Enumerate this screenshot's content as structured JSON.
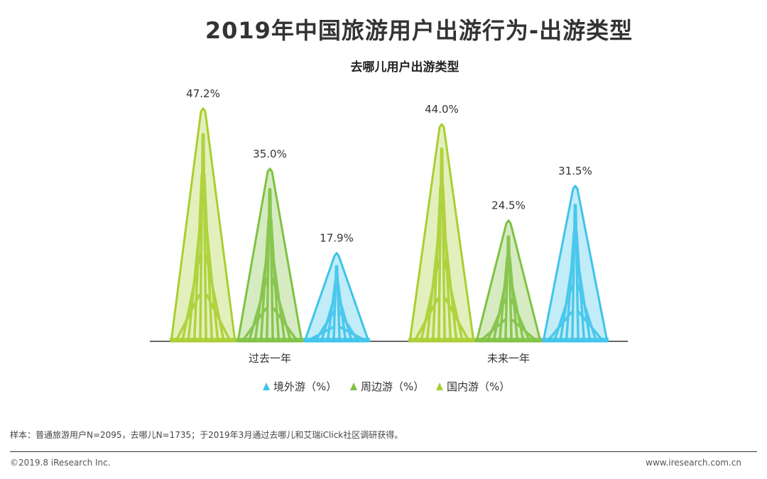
{
  "title": "2019年中国旅游用户出游行为-出游类型",
  "chart_data": {
    "type": "bar",
    "subtitle": "去哪儿用户出游类型",
    "categories": [
      "过去一年",
      "未来一年"
    ],
    "series_labels": [
      "境外游（%）",
      "周边游（%）",
      "国内游（%）"
    ],
    "bars": [
      [
        {
          "label": "47.2%",
          "value": 47.2,
          "color": "#a9cf31",
          "series": "国内游"
        },
        {
          "label": "35.0%",
          "value": 35.0,
          "color": "#7fc242",
          "series": "周边游"
        },
        {
          "label": "17.9%",
          "value": 17.9,
          "color": "#3ec4ea",
          "series": "境外游"
        }
      ],
      [
        {
          "label": "44.0%",
          "value": 44.0,
          "color": "#a9cf31",
          "series": "国内游"
        },
        {
          "label": "24.5%",
          "value": 24.5,
          "color": "#7fc242",
          "series": "周边游"
        },
        {
          "label": "31.5%",
          "value": 31.5,
          "color": "#3ec4ea",
          "series": "境外游"
        }
      ]
    ],
    "legend_colors": [
      "#3ec4ea",
      "#7fc242",
      "#a9cf31"
    ],
    "ylim": [
      0,
      50
    ]
  },
  "footer": {
    "note": "样本：普通旅游用户N=2095，去哪儿N=1735；于2019年3月通过去哪儿和艾瑞iClick社区调研获得。",
    "copyright": "©2019.8 iResearch Inc.",
    "website": "www.iresearch.com.cn"
  }
}
